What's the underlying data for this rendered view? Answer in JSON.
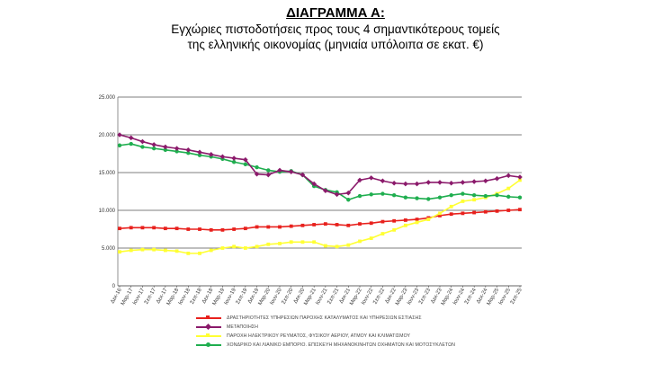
{
  "title": {
    "line1": "ΔΙΑΓΡΑΜΜΑ Α:",
    "line2": "Εγχώριες πιστοδοτήσεις προς τους 4 σημαντικότερους τομείς",
    "line3": "της ελληνικής οικονομίας (μηνιαία υπόλοιπα σε εκατ. €)"
  },
  "chart_data": {
    "type": "line",
    "title": "ΔΙΑΓΡΑΜΜΑ Α: Εγχώριες πιστοδοτήσεις προς τους 4 σημαντικότερους τομείς της ελληνικής οικονομίας (μηνιαία υπόλοιπα σε εκατ. €)",
    "xlabel": "",
    "ylabel": "",
    "ylim": [
      0,
      25000
    ],
    "y_ticks": [
      "0",
      "5.000",
      "10.000",
      "15.000",
      "20.000",
      "25.000"
    ],
    "grid": true,
    "legend_position": "bottom",
    "categories": [
      "Δεκ-16",
      "Μαρ-17",
      "Ιουν-17",
      "Σεπ-17",
      "Δεκ-17",
      "Μαρ-18",
      "Ιουν-18",
      "Σεπ-18",
      "Δεκ-18",
      "Μαρ-19",
      "Ιουν-19",
      "Σεπ-19",
      "Δεκ-19",
      "Μαρ-20",
      "Ιουν-20",
      "Σεπ-20",
      "Δεκ-20",
      "Μαρ-21",
      "Ιουν-21",
      "Σεπ-21",
      "Δεκ-21",
      "Μαρ-22",
      "Ιουν-22",
      "Σεπ-22",
      "Δεκ-22",
      "Μαρ-23",
      "Ιουν-23",
      "Σεπ-23",
      "Δεκ-23",
      "Μαρ-24",
      "Ιουν-24",
      "Σεπ-24",
      "Δεκ-24",
      "Μαρ-25",
      "Ιουν-25",
      "Σεπ-25"
    ],
    "series": [
      {
        "name": "ΔΡΑΣΤΗΡΙΟΤΗΤΕΣ ΥΠΗΡΕΣΙΩΝ ΠΑΡΟΧΗΣ ΚΑΤΑΛΥΜΑΤΟΣ ΚΑΙ ΥΠΗΡΕΣΙΩΝ ΕΣΤΙΑΣΗΣ",
        "color": "#e8211d",
        "marker": "square",
        "values": [
          7600,
          7700,
          7700,
          7700,
          7600,
          7600,
          7500,
          7500,
          7400,
          7400,
          7500,
          7600,
          7800,
          7800,
          7800,
          7900,
          8000,
          8100,
          8200,
          8100,
          8000,
          8200,
          8300,
          8500,
          8600,
          8700,
          8800,
          9000,
          9300,
          9500,
          9600,
          9700,
          9800,
          9900,
          10000,
          10100
        ]
      },
      {
        "name": "ΜΕΤΑΠΟΙΗΣΗ",
        "color": "#8b1a6b",
        "marker": "diamond",
        "values": [
          20000,
          19600,
          19100,
          18700,
          18400,
          18200,
          18000,
          17700,
          17400,
          17100,
          16900,
          16700,
          14800,
          14700,
          15300,
          15100,
          14700,
          13500,
          12600,
          12100,
          12300,
          14000,
          14300,
          13900,
          13600,
          13500,
          13500,
          13700,
          13700,
          13600,
          13700,
          13800,
          13900,
          14200,
          14600,
          14400
        ]
      },
      {
        "name": "ΠΑΡΟΧΗ ΗΛΕΚΤΡΙΚΟΥ ΡΕΥΜΑΤΟΣ, ΦΥΣΙΚΟΥ ΑΕΡΙΟΥ, ΑΤΜΟΥ ΚΑΙ ΚΛΙΜΑΤΙΣΜΟΥ",
        "color": "#ffff33",
        "marker": "square",
        "values": [
          4500,
          4700,
          4800,
          4800,
          4700,
          4600,
          4300,
          4300,
          4700,
          5000,
          5200,
          5000,
          5200,
          5500,
          5600,
          5800,
          5800,
          5800,
          5300,
          5200,
          5400,
          5900,
          6300,
          6900,
          7400,
          8000,
          8400,
          8800,
          9600,
          10500,
          11200,
          11400,
          11700,
          12200,
          12900,
          14000
        ]
      },
      {
        "name": "ΧΟΝΔΡΙΚΟ ΚΑΙ ΛΙΑΝΙΚΟ ΕΜΠΟΡΙΟ. ΕΠΙΣΚΕΥΗ ΜΗΧΑΝΟΚΙΝΗΤΩΝ ΟΧΗΜΑΤΩΝ ΚΑΙ ΜΟΤΟΣΥΚΛΕΤΩΝ",
        "color": "#1fae4f",
        "marker": "circle",
        "values": [
          18600,
          18800,
          18400,
          18200,
          18000,
          17800,
          17600,
          17300,
          17100,
          16800,
          16400,
          16100,
          15700,
          15300,
          15100,
          15200,
          14700,
          13200,
          12700,
          12400,
          11400,
          11900,
          12100,
          12200,
          12000,
          11700,
          11600,
          11500,
          11700,
          12000,
          12200,
          12000,
          11900,
          12000,
          11800,
          11700
        ]
      }
    ]
  }
}
